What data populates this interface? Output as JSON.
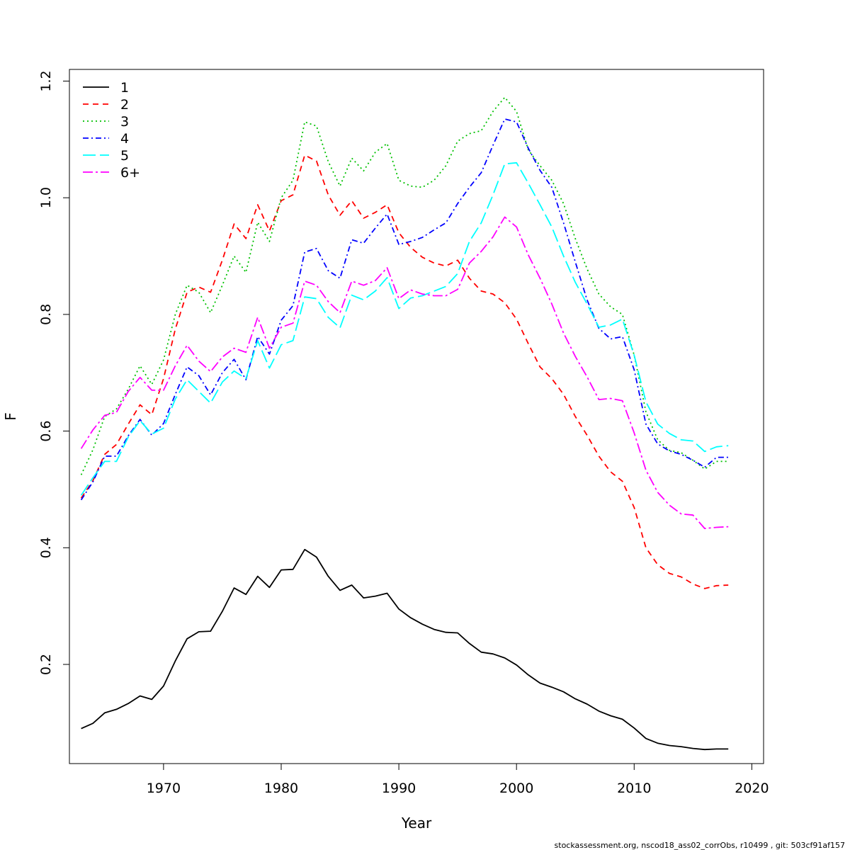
{
  "chart_data": {
    "type": "line",
    "xlabel": "Year",
    "ylabel": "F",
    "xlim": [
      1962,
      2021
    ],
    "ylim": [
      0.03,
      1.22
    ],
    "x_ticks": [
      1970,
      1980,
      1990,
      2000,
      2010,
      2020
    ],
    "y_ticks": [
      0.2,
      0.4,
      0.6,
      0.8,
      1.0,
      1.2
    ],
    "y_tick_labels": [
      "0.2",
      "0.4",
      "0.6",
      "0.8",
      "1.0",
      "1.2"
    ],
    "legend_position": "top-left",
    "grid": false,
    "x": [
      1963,
      1964,
      1965,
      1966,
      1967,
      1968,
      1969,
      1970,
      1971,
      1972,
      1973,
      1974,
      1975,
      1976,
      1977,
      1978,
      1979,
      1980,
      1981,
      1982,
      1983,
      1984,
      1985,
      1986,
      1987,
      1988,
      1989,
      1990,
      1991,
      1992,
      1993,
      1994,
      1995,
      1996,
      1997,
      1998,
      1999,
      2000,
      2001,
      2002,
      2003,
      2004,
      2005,
      2006,
      2007,
      2008,
      2009,
      2010,
      2011,
      2012,
      2013,
      2014,
      2015,
      2016,
      2017,
      2018
    ],
    "series": [
      {
        "name": "1",
        "color": "#000000",
        "dash": "",
        "values": [
          0.09,
          0.099,
          0.117,
          0.123,
          0.133,
          0.146,
          0.14,
          0.163,
          0.206,
          0.244,
          0.256,
          0.257,
          0.291,
          0.331,
          0.32,
          0.351,
          0.332,
          0.362,
          0.363,
          0.397,
          0.384,
          0.351,
          0.327,
          0.336,
          0.314,
          0.317,
          0.322,
          0.295,
          0.28,
          0.269,
          0.26,
          0.255,
          0.254,
          0.236,
          0.221,
          0.218,
          0.211,
          0.199,
          0.182,
          0.168,
          0.161,
          0.153,
          0.141,
          0.132,
          0.12,
          0.112,
          0.106,
          0.091,
          0.073,
          0.065,
          0.061,
          0.059,
          0.056,
          0.054,
          0.055,
          0.055
        ]
      },
      {
        "name": "2",
        "color": "#ff0000",
        "dash": "8,6",
        "values": [
          0.485,
          0.515,
          0.56,
          0.577,
          0.612,
          0.645,
          0.628,
          0.69,
          0.775,
          0.838,
          0.847,
          0.838,
          0.893,
          0.955,
          0.93,
          0.988,
          0.943,
          0.995,
          1.005,
          1.073,
          1.063,
          1.005,
          0.97,
          0.995,
          0.965,
          0.975,
          0.988,
          0.94,
          0.915,
          0.898,
          0.888,
          0.883,
          0.893,
          0.862,
          0.84,
          0.835,
          0.82,
          0.792,
          0.75,
          0.71,
          0.69,
          0.663,
          0.625,
          0.593,
          0.557,
          0.53,
          0.514,
          0.469,
          0.4,
          0.371,
          0.356,
          0.35,
          0.338,
          0.33,
          0.335,
          0.336
        ]
      },
      {
        "name": "3",
        "color": "#00c000",
        "dash": "2,4",
        "values": [
          0.525,
          0.568,
          0.625,
          0.638,
          0.672,
          0.712,
          0.68,
          0.722,
          0.8,
          0.85,
          0.838,
          0.803,
          0.85,
          0.9,
          0.872,
          0.958,
          0.925,
          1.0,
          1.03,
          1.13,
          1.123,
          1.062,
          1.02,
          1.068,
          1.046,
          1.078,
          1.093,
          1.03,
          1.02,
          1.018,
          1.03,
          1.055,
          1.097,
          1.11,
          1.115,
          1.148,
          1.172,
          1.148,
          1.082,
          1.055,
          1.03,
          0.99,
          0.93,
          0.878,
          0.835,
          0.813,
          0.8,
          0.73,
          0.633,
          0.585,
          0.567,
          0.563,
          0.55,
          0.535,
          0.548,
          0.548
        ]
      },
      {
        "name": "4",
        "color": "#0000ff",
        "dash": "8,4,2,4",
        "values": [
          0.482,
          0.513,
          0.557,
          0.557,
          0.592,
          0.62,
          0.593,
          0.613,
          0.663,
          0.71,
          0.695,
          0.662,
          0.7,
          0.723,
          0.688,
          0.762,
          0.732,
          0.79,
          0.815,
          0.907,
          0.913,
          0.875,
          0.862,
          0.928,
          0.922,
          0.948,
          0.972,
          0.92,
          0.925,
          0.932,
          0.945,
          0.957,
          0.99,
          1.018,
          1.043,
          1.09,
          1.135,
          1.13,
          1.085,
          1.047,
          1.018,
          0.957,
          0.89,
          0.825,
          0.776,
          0.758,
          0.762,
          0.705,
          0.612,
          0.578,
          0.566,
          0.56,
          0.55,
          0.538,
          0.555,
          0.555
        ]
      },
      {
        "name": "5",
        "color": "#00ffff",
        "dash": "18,6",
        "values": [
          0.49,
          0.52,
          0.548,
          0.548,
          0.59,
          0.618,
          0.595,
          0.605,
          0.655,
          0.688,
          0.668,
          0.648,
          0.684,
          0.703,
          0.69,
          0.755,
          0.708,
          0.748,
          0.755,
          0.83,
          0.827,
          0.795,
          0.777,
          0.833,
          0.825,
          0.84,
          0.863,
          0.81,
          0.828,
          0.832,
          0.84,
          0.848,
          0.87,
          0.925,
          0.957,
          1.005,
          1.058,
          1.06,
          1.025,
          0.988,
          0.95,
          0.9,
          0.855,
          0.818,
          0.778,
          0.782,
          0.792,
          0.73,
          0.65,
          0.612,
          0.596,
          0.585,
          0.583,
          0.565,
          0.573,
          0.575
        ]
      },
      {
        "name": "6+",
        "color": "#ff00ff",
        "dash": "14,4,3,4",
        "values": [
          0.57,
          0.602,
          0.627,
          0.632,
          0.668,
          0.692,
          0.67,
          0.67,
          0.712,
          0.747,
          0.72,
          0.702,
          0.727,
          0.742,
          0.735,
          0.795,
          0.742,
          0.778,
          0.785,
          0.857,
          0.85,
          0.822,
          0.803,
          0.857,
          0.85,
          0.858,
          0.88,
          0.827,
          0.842,
          0.835,
          0.832,
          0.832,
          0.843,
          0.888,
          0.908,
          0.933,
          0.967,
          0.95,
          0.902,
          0.862,
          0.818,
          0.768,
          0.728,
          0.693,
          0.654,
          0.656,
          0.652,
          0.597,
          0.533,
          0.495,
          0.473,
          0.458,
          0.456,
          0.433,
          0.435,
          0.436
        ]
      }
    ]
  },
  "footer_text": "stockassessment.org, nscod18_ass02_corrObs, r10499 , git: 503cf91af157"
}
